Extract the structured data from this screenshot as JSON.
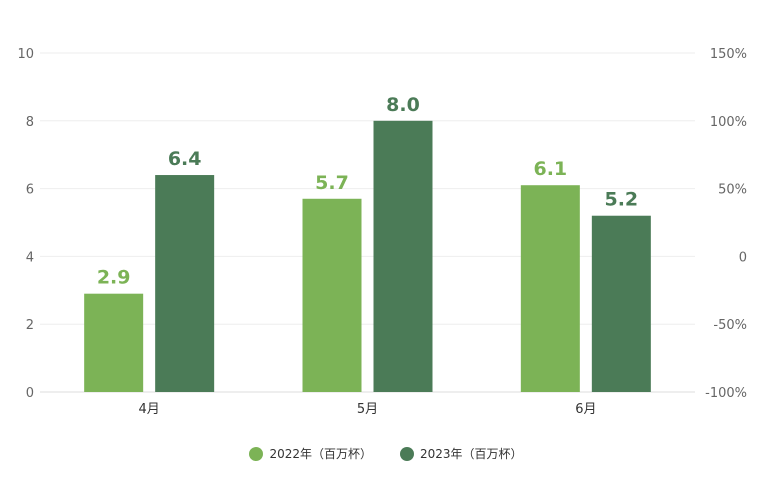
{
  "chart_data": {
    "type": "bar",
    "categories": [
      "4月",
      "5月",
      "6月"
    ],
    "series": [
      {
        "name": "2022年（百万杯）",
        "values": [
          2.9,
          5.7,
          6.1
        ],
        "color": "#7cb356"
      },
      {
        "name": "2023年（百万杯）",
        "values": [
          6.4,
          8.0,
          5.2
        ],
        "color": "#4b7b57"
      }
    ],
    "ylim": [
      0,
      10
    ],
    "yticks": [
      "0",
      "2",
      "4",
      "6",
      "8",
      "10"
    ],
    "y2lim": [
      -100,
      150
    ],
    "y2ticks": [
      "-100%",
      "-50%",
      "0",
      "50%",
      "100%",
      "150%"
    ],
    "grid": true,
    "legend_position": "bottom"
  }
}
